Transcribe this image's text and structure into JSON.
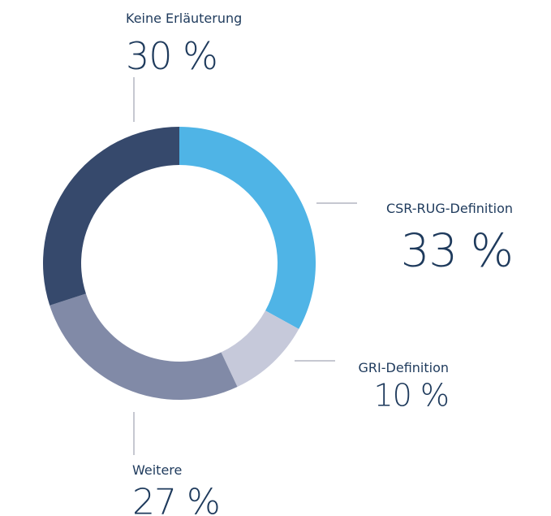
{
  "chart_data": {
    "type": "pie",
    "categories": [
      "CSR-RUG-Definition",
      "GRI-Definition",
      "Weitere",
      "Keine Erläuterung"
    ],
    "values": [
      33,
      10,
      27,
      30
    ],
    "value_labels": [
      "33 %",
      "10 %",
      "27 %",
      "30 %"
    ],
    "colors": [
      "#4fb4e6",
      "#c6c9da",
      "#818aa7",
      "#36496c"
    ]
  }
}
